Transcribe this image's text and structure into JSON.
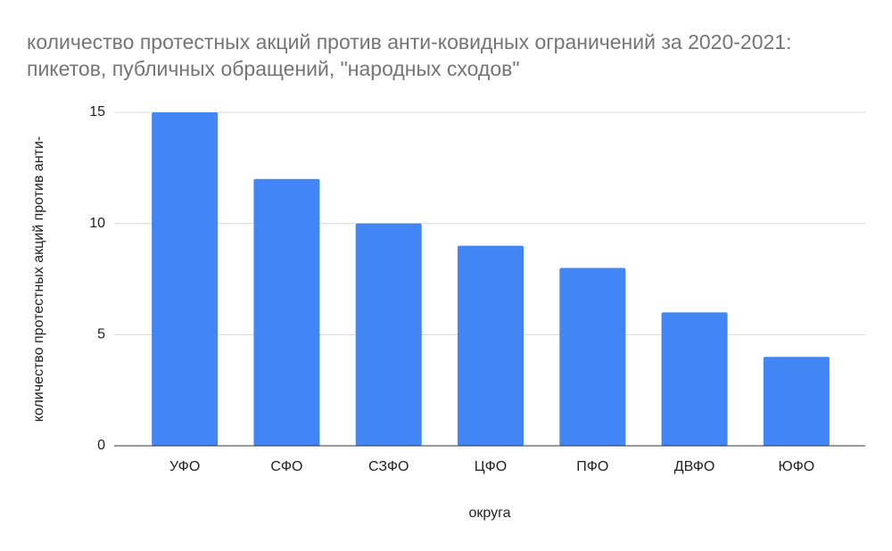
{
  "chart_data": {
    "type": "bar",
    "title": "количество протестных акций против анти-ковидных ограничений за 2020-2021: пикетов, публичных обращений, \"народных сходов\"",
    "x_label": "округа",
    "y_label": "количество протестных акций против анти-",
    "categories": [
      "УФО",
      "СФО",
      "СЗФО",
      "ЦФО",
      "ПФО",
      "ДВФО",
      "ЮФО"
    ],
    "values": [
      15,
      12,
      10,
      9,
      8,
      6,
      4
    ],
    "color": "#4285f4",
    "ylim": [
      0,
      15
    ],
    "yticks": [
      0,
      5,
      10,
      15
    ],
    "grid": true
  }
}
